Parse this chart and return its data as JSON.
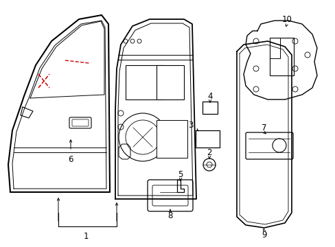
{
  "background_color": "#ffffff",
  "line_color": "#000000",
  "red_color": "#cc0000",
  "figsize": [
    4.89,
    3.6
  ],
  "dpi": 100,
  "label_fontsize": 8.5
}
